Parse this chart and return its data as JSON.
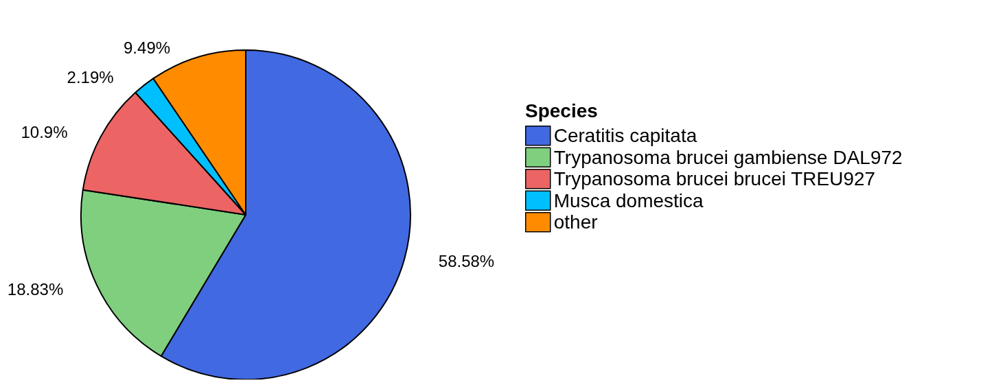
{
  "chart_data": {
    "type": "pie",
    "legend_title": "Species",
    "legend": "right",
    "categories": [
      "Ceratitis capitata",
      "Trypanosoma brucei gambiense DAL972",
      "Trypanosoma brucei brucei TREU927",
      "Musca domestica",
      "other"
    ],
    "values": [
      58.58,
      18.83,
      10.9,
      2.19,
      9.49
    ],
    "value_labels": [
      "58.58%",
      "18.83%",
      "10.9%",
      "2.19%",
      "9.49%"
    ],
    "colors": [
      "#4169e1",
      "#7fcf7f",
      "#ec6464",
      "#00bfff",
      "#ff8c00"
    ]
  }
}
